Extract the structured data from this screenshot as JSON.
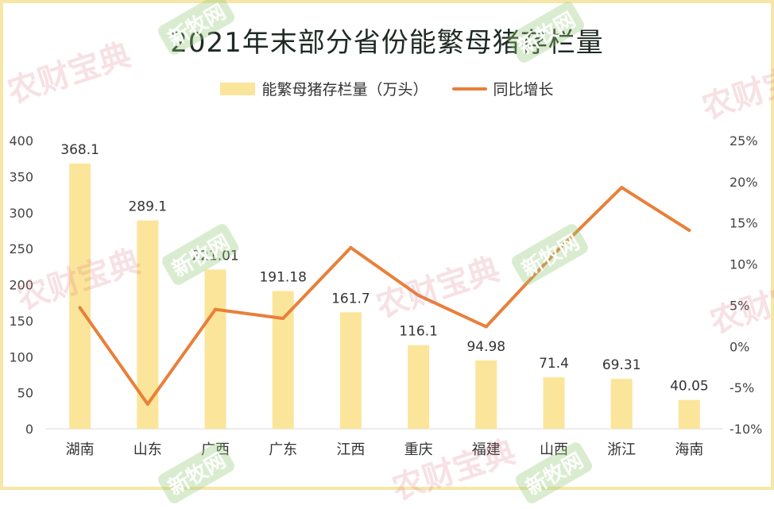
{
  "title": "2021年末部分省份能繁母猪存栏量",
  "legend": {
    "bar_label": "能繁母猪存栏量（万头）",
    "line_label": "同比增长"
  },
  "watermarks": {
    "brand_red": "农财宝典",
    "brand_green": "新牧网"
  },
  "colors": {
    "bar": "#fbe59a",
    "line": "#e8803a",
    "frame": "#f6e7a8"
  },
  "chart_data": {
    "type": "bar",
    "title": "2021年末部分省份能繁母猪存栏量",
    "categories": [
      "湖南",
      "山东",
      "广西",
      "广东",
      "江西",
      "重庆",
      "福建",
      "山西",
      "浙江",
      "海南"
    ],
    "series": [
      {
        "name": "能繁母猪存栏量（万头）",
        "type": "bar",
        "axis": "left",
        "values": [
          368.1,
          289.1,
          221.01,
          191.18,
          161.7,
          116.1,
          94.98,
          71.4,
          69.31,
          40.05
        ],
        "labels": [
          "368.1",
          "289.1",
          "221.01",
          "191.18",
          "161.7",
          "116.1",
          "94.98",
          "71.4",
          "69.31",
          "40.05"
        ]
      },
      {
        "name": "同比增长",
        "type": "line",
        "axis": "right",
        "values": [
          0.047,
          -0.07,
          0.045,
          0.034,
          0.12,
          0.062,
          0.024,
          0.112,
          0.193,
          0.141
        ]
      }
    ],
    "y_left": {
      "lim": [
        0,
        400
      ],
      "ticks": [
        "0",
        "50",
        "100",
        "150",
        "200",
        "250",
        "300",
        "350",
        "400"
      ]
    },
    "y_right": {
      "lim": [
        -0.1,
        0.25
      ],
      "ticks": [
        "-10%",
        "-5%",
        "0%",
        "5%",
        "10%",
        "15%",
        "20%",
        "25%"
      ]
    },
    "grid": false,
    "legend_position": "top"
  }
}
